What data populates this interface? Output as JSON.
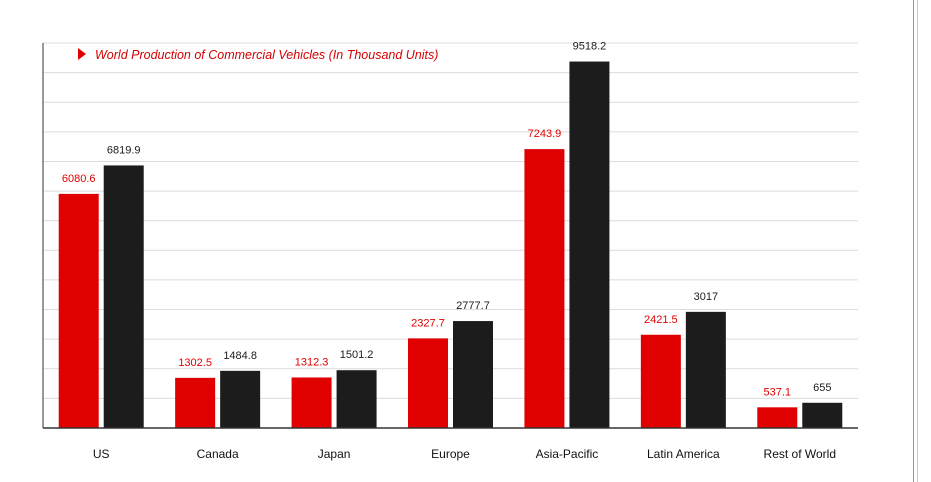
{
  "chart_data": {
    "type": "bar",
    "title": "World Production of Commercial Vehicles (In Thousand Units)",
    "xlabel": "",
    "ylabel": "",
    "ylim": [
      0,
      10000
    ],
    "grid": true,
    "categories": [
      "US",
      "Canada",
      "Japan",
      "Europe",
      "Asia-Pacific",
      "Latin America",
      "Rest of World"
    ],
    "series": [
      {
        "color": "#e00000",
        "label_color": "#e00000",
        "values": [
          6080.6,
          1302.5,
          1312.3,
          2327.7,
          7243.9,
          2421.5,
          537.1
        ],
        "labels": [
          "6080.6",
          "1302.5",
          "1312.3",
          "2327.7",
          "7243.9",
          "2421.5",
          "537.1"
        ]
      },
      {
        "color": "#1c1c1c",
        "label_color": "#1c1c1c",
        "values": [
          6819.9,
          1484.8,
          1501.2,
          2777.7,
          9518.2,
          3017,
          655
        ],
        "labels": [
          "6819.9",
          "1484.8",
          "1501.2",
          "2777.7",
          "9518.2",
          "3017",
          "655"
        ]
      }
    ],
    "title_marker_color": "#e00000",
    "title_color": "#d40000"
  }
}
